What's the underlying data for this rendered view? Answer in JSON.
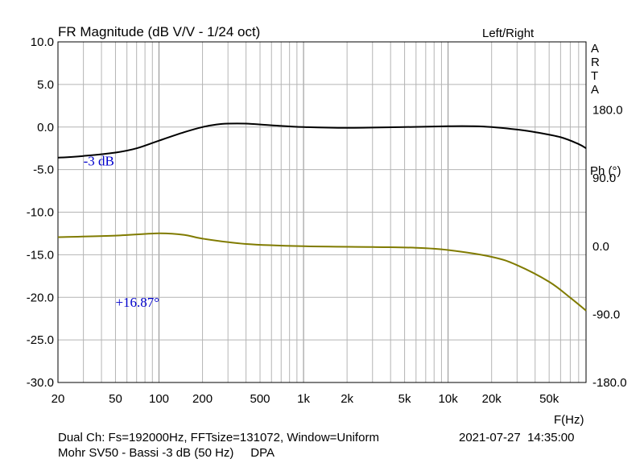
{
  "chart_data": {
    "type": "line",
    "title": "FR Magnitude (dB V/V - 1/24 oct)",
    "channel_label": "Left/Right",
    "brand_letters": [
      "A",
      "R",
      "T",
      "A"
    ],
    "xlabel": "F(Hz)",
    "ylabel": "",
    "ylabel_right": "Ph (°)",
    "x_scale": "log",
    "xlim": [
      20,
      90000
    ],
    "ylim": [
      -30,
      10
    ],
    "ylim_right": [
      -180,
      270
    ],
    "grid": true,
    "x_ticks": [
      {
        "value": 20,
        "label": "20"
      },
      {
        "value": 50,
        "label": "50"
      },
      {
        "value": 100,
        "label": "100"
      },
      {
        "value": 200,
        "label": "200"
      },
      {
        "value": 500,
        "label": "500"
      },
      {
        "value": 1000,
        "label": "1k"
      },
      {
        "value": 2000,
        "label": "2k"
      },
      {
        "value": 5000,
        "label": "5k"
      },
      {
        "value": 10000,
        "label": "10k"
      },
      {
        "value": 20000,
        "label": "20k"
      },
      {
        "value": 50000,
        "label": "50k"
      }
    ],
    "y_ticks": [
      {
        "value": 10,
        "label": "10.0"
      },
      {
        "value": 5,
        "label": "5.0"
      },
      {
        "value": 0,
        "label": "0.0"
      },
      {
        "value": -5,
        "label": "-5.0"
      },
      {
        "value": -10,
        "label": "-10.0"
      },
      {
        "value": -15,
        "label": "-15.0"
      },
      {
        "value": -20,
        "label": "-20.0"
      },
      {
        "value": -25,
        "label": "-25.0"
      },
      {
        "value": -30,
        "label": "-30.0"
      }
    ],
    "y_ticks_right": [
      {
        "value": 180,
        "label": "180.0"
      },
      {
        "value": 90,
        "label": "90.0"
      },
      {
        "value": 0,
        "label": "0.0"
      },
      {
        "value": -90,
        "label": "-90.0"
      },
      {
        "value": -180,
        "label": "-180.0"
      }
    ],
    "series": [
      {
        "axis": "left",
        "color": "#000000",
        "points": [
          [
            20,
            -3.6
          ],
          [
            30,
            -3.4
          ],
          [
            50,
            -3.0
          ],
          [
            70,
            -2.5
          ],
          [
            100,
            -1.6
          ],
          [
            150,
            -0.6
          ],
          [
            200,
            0.0
          ],
          [
            250,
            0.3
          ],
          [
            300,
            0.4
          ],
          [
            400,
            0.4
          ],
          [
            600,
            0.2
          ],
          [
            1000,
            0.0
          ],
          [
            2000,
            -0.1
          ],
          [
            5000,
            0.0
          ],
          [
            10000,
            0.1
          ],
          [
            15000,
            0.1
          ],
          [
            20000,
            0.0
          ],
          [
            30000,
            -0.3
          ],
          [
            40000,
            -0.6
          ],
          [
            60000,
            -1.2
          ],
          [
            80000,
            -2.0
          ],
          [
            90000,
            -2.5
          ]
        ]
      },
      {
        "axis": "right",
        "color": "#807b00",
        "points": [
          [
            20,
            12
          ],
          [
            50,
            14
          ],
          [
            100,
            17
          ],
          [
            150,
            15
          ],
          [
            200,
            10
          ],
          [
            400,
            3
          ],
          [
            1000,
            0
          ],
          [
            3000,
            -1
          ],
          [
            6000,
            -2
          ],
          [
            10000,
            -5
          ],
          [
            20000,
            -14
          ],
          [
            30000,
            -25
          ],
          [
            50000,
            -47
          ],
          [
            70000,
            -68
          ],
          [
            90000,
            -85
          ]
        ]
      }
    ],
    "annotations": [
      {
        "text": "-3 dB",
        "x": 30,
        "y": -4.5,
        "color": "#0000cc"
      },
      {
        "text": "+16.87°",
        "x": 50,
        "y": -21.1,
        "color": "#0000cc"
      }
    ]
  },
  "footer": {
    "line1": "Dual Ch: Fs=192000Hz, FFTsize=131072, Window=Uniform",
    "line2": "Mohr SV50 - Bassi -3 dB (50 Hz)     DPA",
    "timestamp": "2021-07-27  14:35:00"
  }
}
